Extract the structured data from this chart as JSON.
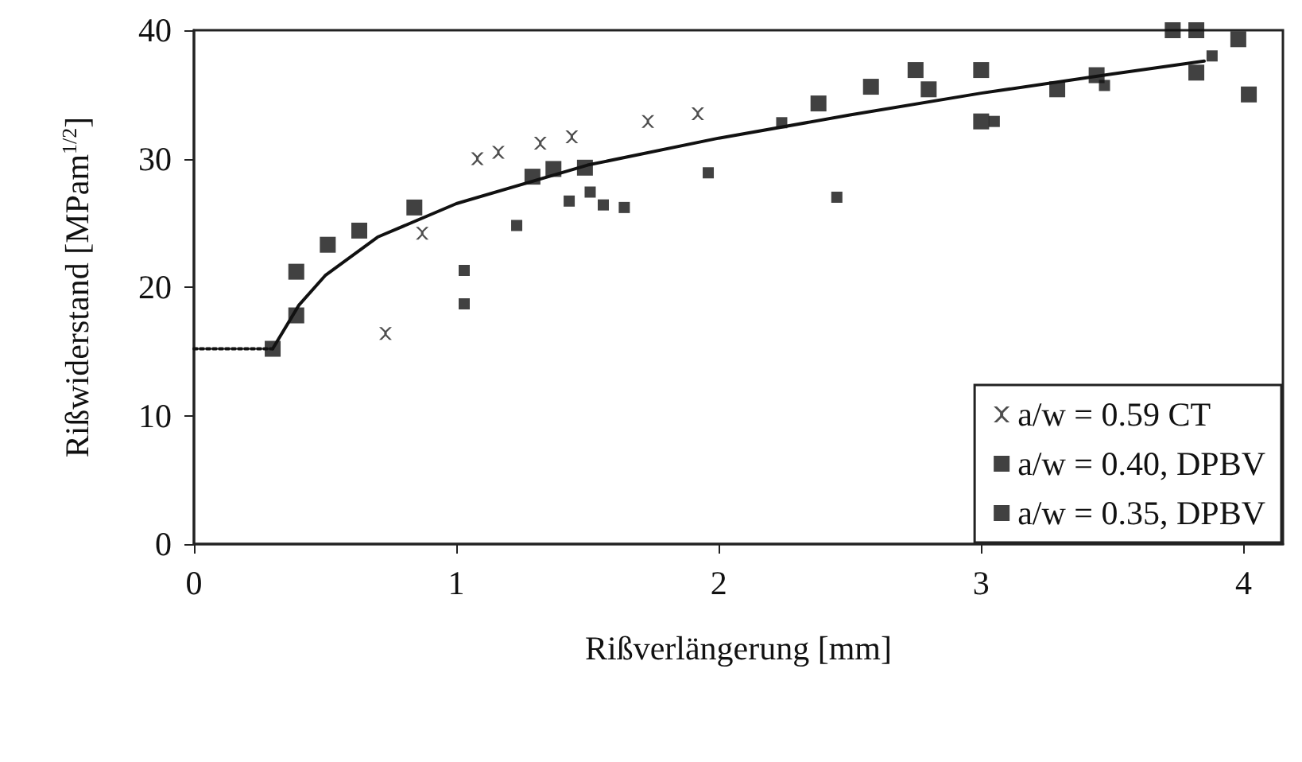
{
  "chart_data": {
    "type": "scatter",
    "xlabel": "Rißverlängerung [mm]",
    "ylabel": "Rißwiderstand [MPam$^{1/2}$]",
    "xlim": [
      0,
      4.15
    ],
    "xticks": [
      0,
      1,
      2,
      3,
      4
    ],
    "ylim": [
      0,
      40
    ],
    "yticks": [
      0,
      10,
      20,
      30,
      40
    ],
    "grid": false,
    "legend": "bottom right",
    "series": [
      {
        "name": "a/w = 0.59 CT",
        "color": "#222222",
        "marker": "cross",
        "x": [
          0.73,
          0.87,
          1.08,
          1.16,
          1.32,
          1.44,
          1.73,
          1.92
        ],
        "values": [
          16.4,
          24.2,
          30.0,
          30.5,
          31.2,
          31.7,
          32.9,
          33.5
        ]
      },
      {
        "name": "a/w = 0.40, DPBV",
        "color": "#111111",
        "marker": "square",
        "x": [
          0.3,
          0.39,
          0.39,
          0.51,
          0.63,
          0.84,
          1.29,
          1.37,
          1.49,
          2.38,
          2.58,
          2.75,
          2.8,
          3.0,
          3.0,
          3.29,
          3.44,
          3.73,
          3.82,
          3.82,
          3.98,
          4.02
        ],
        "values": [
          15.2,
          17.8,
          21.2,
          23.3,
          24.4,
          26.2,
          28.6,
          29.2,
          29.3,
          34.3,
          35.6,
          36.9,
          35.4,
          36.9,
          32.9,
          35.4,
          36.5,
          40.0,
          40.0,
          36.7,
          39.3,
          35.0
        ]
      },
      {
        "name": "a/w = 0.35, DPBV",
        "color": "#111111",
        "marker": "square",
        "x": [
          1.03,
          1.03,
          1.23,
          1.43,
          1.51,
          1.56,
          1.64,
          1.96,
          2.24,
          2.45,
          3.05,
          3.47,
          3.88
        ],
        "values": [
          21.3,
          18.7,
          24.8,
          26.7,
          27.4,
          26.4,
          26.2,
          28.9,
          32.8,
          27.0,
          32.9,
          35.7,
          38.0
        ]
      },
      {
        "type": "line",
        "color": "#111111",
        "line_style": "solid",
        "marker": "none",
        "x": [
          0.3,
          0.4,
          0.5,
          0.7,
          1.0,
          1.5,
          2.0,
          2.5,
          3.0,
          3.5,
          3.85
        ],
        "values": [
          15.2,
          18.6,
          20.9,
          23.9,
          26.5,
          29.5,
          31.6,
          33.4,
          35.1,
          36.6,
          37.6
        ]
      },
      {
        "type": "line",
        "color": "#111111",
        "line_style": "dotted",
        "marker": "none",
        "x": [
          0,
          0.3
        ],
        "values": [
          15.2,
          15.2
        ]
      }
    ]
  }
}
